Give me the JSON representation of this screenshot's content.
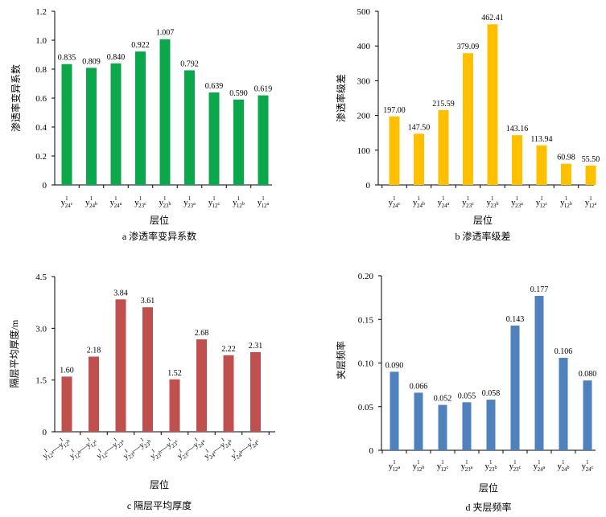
{
  "figure": {
    "panels": [
      {
        "id": "a",
        "caption": "a  渗透率变异系数"
      },
      {
        "id": "b",
        "caption": "b  渗透率级差"
      },
      {
        "id": "c",
        "caption": "c  隔层平均厚度"
      },
      {
        "id": "d",
        "caption": "d  夹层频率"
      }
    ]
  },
  "colors": {
    "a": "#0aa84a",
    "b": "#ffc000",
    "c": "#c0504d",
    "d": "#4f81bd",
    "axis": "#000000"
  },
  "chart_data": [
    {
      "type": "bar",
      "title": "a  渗透率变异系数",
      "xlabel": "层位",
      "ylabel": "渗透率变异系数",
      "ylim": [
        0,
        1.2
      ],
      "yticks": [
        "0",
        "0.2",
        "0.4",
        "0.6",
        "0.8",
        "1.0",
        "1.2"
      ],
      "ytick_values": [
        0,
        0.2,
        0.4,
        0.6,
        0.8,
        1.0,
        1.2
      ],
      "categories": [
        {
          "base": "y",
          "sup": "1",
          "sub": "24",
          "subsup": "c"
        },
        {
          "base": "y",
          "sup": "1",
          "sub": "24",
          "subsup": "b"
        },
        {
          "base": "y",
          "sup": "1",
          "sub": "24",
          "subsup": "a"
        },
        {
          "base": "y",
          "sup": "1",
          "sub": "23",
          "subsup": "c"
        },
        {
          "base": "y",
          "sup": "1",
          "sub": "23",
          "subsup": "b"
        },
        {
          "base": "y",
          "sup": "1",
          "sub": "23",
          "subsup": "a"
        },
        {
          "base": "y",
          "sup": "1",
          "sub": "12",
          "subsup": "c"
        },
        {
          "base": "y",
          "sup": "1",
          "sub": "12",
          "subsup": "b"
        },
        {
          "base": "y",
          "sup": "1",
          "sub": "12",
          "subsup": "a"
        }
      ],
      "values": [
        0.835,
        0.809,
        0.84,
        0.922,
        1.007,
        0.792,
        0.639,
        0.59,
        0.619
      ],
      "labels": [
        "0.835",
        "0.809",
        "0.840",
        "0.922",
        "1.007",
        "0.792",
        "0.639",
        "0.590",
        "0.619"
      ],
      "grid": false,
      "legend": "none"
    },
    {
      "type": "bar",
      "title": "b  渗透率级差",
      "xlabel": "层位",
      "ylabel": "渗透率级差",
      "ylim": [
        0,
        500
      ],
      "yticks": [
        "0",
        "100",
        "200",
        "300",
        "400",
        "500"
      ],
      "ytick_values": [
        0,
        100,
        200,
        300,
        400,
        500
      ],
      "categories": [
        {
          "base": "y",
          "sup": "1",
          "sub": "24",
          "subsup": "c"
        },
        {
          "base": "y",
          "sup": "1",
          "sub": "24",
          "subsup": "b"
        },
        {
          "base": "y",
          "sup": "1",
          "sub": "24",
          "subsup": "a"
        },
        {
          "base": "y",
          "sup": "1",
          "sub": "23",
          "subsup": "c"
        },
        {
          "base": "y",
          "sup": "1",
          "sub": "23",
          "subsup": "b"
        },
        {
          "base": "y",
          "sup": "1",
          "sub": "23",
          "subsup": "a"
        },
        {
          "base": "y",
          "sup": "1",
          "sub": "12",
          "subsup": "c"
        },
        {
          "base": "y",
          "sup": "1",
          "sub": "12",
          "subsup": "b"
        },
        {
          "base": "y",
          "sup": "1",
          "sub": "12",
          "subsup": "a"
        }
      ],
      "values": [
        197.0,
        147.5,
        215.59,
        379.09,
        462.41,
        143.16,
        113.94,
        60.98,
        55.5
      ],
      "labels": [
        "197.00",
        "147.50",
        "215.59",
        "379.09",
        "462.41",
        "143.16",
        "113.94",
        "60.98",
        "55.50"
      ],
      "grid": false,
      "legend": "none"
    },
    {
      "type": "bar",
      "title": "c  隔层平均厚度",
      "xlabel": "层位",
      "ylabel": "隔层平均厚度/m",
      "ylim": [
        0,
        4.5
      ],
      "yticks": [
        "0",
        "1.5",
        "3.0",
        "4.5"
      ],
      "ytick_values": [
        0,
        1.5,
        3.0,
        4.5
      ],
      "categories": [
        {
          "left": {
            "base": "y",
            "sup": "1",
            "sub": "12",
            "subsup": "a"
          },
          "sep": "—",
          "right": {
            "base": "y",
            "sup": "1",
            "sub": "12",
            "subsup": "b"
          }
        },
        {
          "left": {
            "base": "y",
            "sup": "1",
            "sub": "12",
            "subsup": "b"
          },
          "sep": "—",
          "right": {
            "base": "y",
            "sup": "1",
            "sub": "12",
            "subsup": "c"
          }
        },
        {
          "left": {
            "base": "y",
            "sup": "1",
            "sub": "12",
            "subsup": "c"
          },
          "sep": "—",
          "right": {
            "base": "y",
            "sup": "1",
            "sub": "23",
            "subsup": "a"
          }
        },
        {
          "left": {
            "base": "y",
            "sup": "1",
            "sub": "23",
            "subsup": "a"
          },
          "sep": "—",
          "right": {
            "base": "y",
            "sup": "1",
            "sub": "23",
            "subsup": "b"
          }
        },
        {
          "left": {
            "base": "y",
            "sup": "1",
            "sub": "23",
            "subsup": "b"
          },
          "sep": "—",
          "right": {
            "base": "y",
            "sup": "1",
            "sub": "23",
            "subsup": "c"
          }
        },
        {
          "left": {
            "base": "y",
            "sup": "1",
            "sub": "23",
            "subsup": "c"
          },
          "sep": "—",
          "right": {
            "base": "y",
            "sup": "1",
            "sub": "24",
            "subsup": "a"
          }
        },
        {
          "left": {
            "base": "y",
            "sup": "1",
            "sub": "24",
            "subsup": "a"
          },
          "sep": "—",
          "right": {
            "base": "y",
            "sup": "1",
            "sub": "24",
            "subsup": "b"
          }
        },
        {
          "left": {
            "base": "y",
            "sup": "1",
            "sub": "24",
            "subsup": "b"
          },
          "sep": "—",
          "right": {
            "base": "y",
            "sup": "1",
            "sub": "24",
            "subsup": "c"
          }
        }
      ],
      "values": [
        1.6,
        2.18,
        3.84,
        3.61,
        1.52,
        2.68,
        2.22,
        2.31
      ],
      "labels": [
        "1.60",
        "2.18",
        "3.84",
        "3.61",
        "1.52",
        "2.68",
        "2.22",
        "2.31"
      ],
      "grid": false,
      "legend": "none"
    },
    {
      "type": "bar",
      "title": "d  夹层频率",
      "xlabel": "层位",
      "ylabel": "夹层频率",
      "ylim": [
        0,
        0.2
      ],
      "yticks": [
        "0",
        "0.05",
        "0.10",
        "0.15",
        "0.20"
      ],
      "ytick_values": [
        0,
        0.05,
        0.1,
        0.15,
        0.2
      ],
      "categories": [
        {
          "base": "y",
          "sup": "1",
          "sub": "12",
          "subsup": "a"
        },
        {
          "base": "y",
          "sup": "1",
          "sub": "12",
          "subsup": "b"
        },
        {
          "base": "y",
          "sup": "1",
          "sub": "12",
          "subsup": "c"
        },
        {
          "base": "y",
          "sup": "1",
          "sub": "23",
          "subsup": "a"
        },
        {
          "base": "y",
          "sup": "1",
          "sub": "23",
          "subsup": "b"
        },
        {
          "base": "y",
          "sup": "1",
          "sub": "23",
          "subsup": "c"
        },
        {
          "base": "y",
          "sup": "1",
          "sub": "24",
          "subsup": "a"
        },
        {
          "base": "y",
          "sup": "1",
          "sub": "24",
          "subsup": "b"
        },
        {
          "base": "y",
          "sup": "1",
          "sub": "24",
          "subsup": "c"
        }
      ],
      "values": [
        0.09,
        0.066,
        0.052,
        0.055,
        0.058,
        0.143,
        0.177,
        0.106,
        0.08
      ],
      "labels": [
        "0.090",
        "0.066",
        "0.052",
        "0.055",
        "0.058",
        "0.143",
        "0.177",
        "0.106",
        "0.080"
      ],
      "grid": false,
      "legend": "none"
    }
  ]
}
